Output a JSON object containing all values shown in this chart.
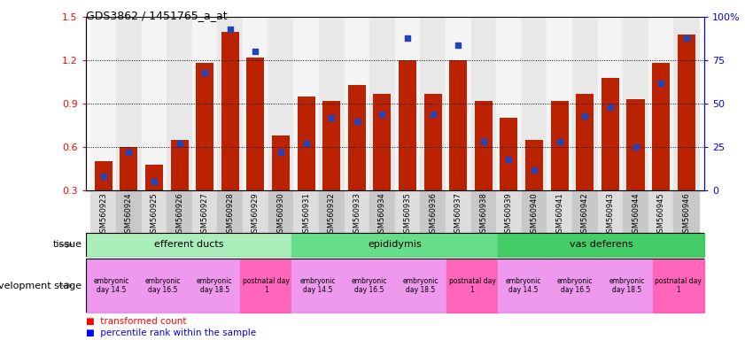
{
  "title": "GDS3862 / 1451765_a_at",
  "samples": [
    "GSM560923",
    "GSM560924",
    "GSM560925",
    "GSM560926",
    "GSM560927",
    "GSM560928",
    "GSM560929",
    "GSM560930",
    "GSM560931",
    "GSM560932",
    "GSM560933",
    "GSM560934",
    "GSM560935",
    "GSM560936",
    "GSM560937",
    "GSM560938",
    "GSM560939",
    "GSM560940",
    "GSM560941",
    "GSM560942",
    "GSM560943",
    "GSM560944",
    "GSM560945",
    "GSM560946"
  ],
  "bar_values": [
    0.5,
    0.6,
    0.48,
    0.65,
    1.18,
    1.4,
    1.22,
    0.68,
    0.95,
    0.92,
    1.03,
    0.97,
    1.2,
    0.97,
    1.2,
    0.92,
    0.8,
    0.65,
    0.92,
    0.97,
    1.08,
    0.93,
    1.18,
    1.38
  ],
  "pct_ranks": [
    8,
    22,
    5,
    27,
    68,
    93,
    80,
    22,
    27,
    42,
    40,
    44,
    88,
    44,
    84,
    28,
    18,
    12,
    28,
    43,
    48,
    25,
    62,
    88
  ],
  "bar_color": "#BB2200",
  "dot_color": "#2244BB",
  "ylim_left": [
    0.3,
    1.5
  ],
  "ylim_right": [
    0,
    100
  ],
  "yticks_left": [
    0.3,
    0.6,
    0.9,
    1.2,
    1.5
  ],
  "yticks_right": [
    0,
    25,
    50,
    75,
    100
  ],
  "yticklabels_right": [
    "0",
    "25",
    "50",
    "75",
    "100%"
  ],
  "tissue_groups": [
    {
      "label": "efferent ducts",
      "start": 0,
      "end": 7,
      "color": "#AAEEBB"
    },
    {
      "label": "epididymis",
      "start": 8,
      "end": 15,
      "color": "#66DD88"
    },
    {
      "label": "vas deferens",
      "start": 16,
      "end": 23,
      "color": "#44CC66"
    }
  ],
  "dev_stage_groups": [
    {
      "label": "embryonic\nday 14.5",
      "start": 0,
      "end": 1,
      "color": "#EE99EE"
    },
    {
      "label": "embryonic\nday 16.5",
      "start": 2,
      "end": 3,
      "color": "#EE99EE"
    },
    {
      "label": "embryonic\nday 18.5",
      "start": 4,
      "end": 5,
      "color": "#EE99EE"
    },
    {
      "label": "postnatal day\n1",
      "start": 6,
      "end": 7,
      "color": "#FF66BB"
    },
    {
      "label": "embryonic\nday 14.5",
      "start": 8,
      "end": 9,
      "color": "#EE99EE"
    },
    {
      "label": "embryonic\nday 16.5",
      "start": 10,
      "end": 11,
      "color": "#EE99EE"
    },
    {
      "label": "embryonic\nday 18.5",
      "start": 12,
      "end": 13,
      "color": "#EE99EE"
    },
    {
      "label": "postnatal day\n1",
      "start": 14,
      "end": 15,
      "color": "#FF66BB"
    },
    {
      "label": "embryonic\nday 14.5",
      "start": 16,
      "end": 17,
      "color": "#EE99EE"
    },
    {
      "label": "embryonic\nday 16.5",
      "start": 18,
      "end": 19,
      "color": "#EE99EE"
    },
    {
      "label": "embryonic\nday 18.5",
      "start": 20,
      "end": 21,
      "color": "#EE99EE"
    },
    {
      "label": "postnatal day\n1",
      "start": 22,
      "end": 23,
      "color": "#FF66BB"
    }
  ],
  "legend_red": "transformed count",
  "legend_blue": "percentile rank within the sample",
  "tissue_label": "tissue",
  "dev_stage_label": "development stage",
  "bar_width": 0.7,
  "background_color": "#FFFFFF"
}
